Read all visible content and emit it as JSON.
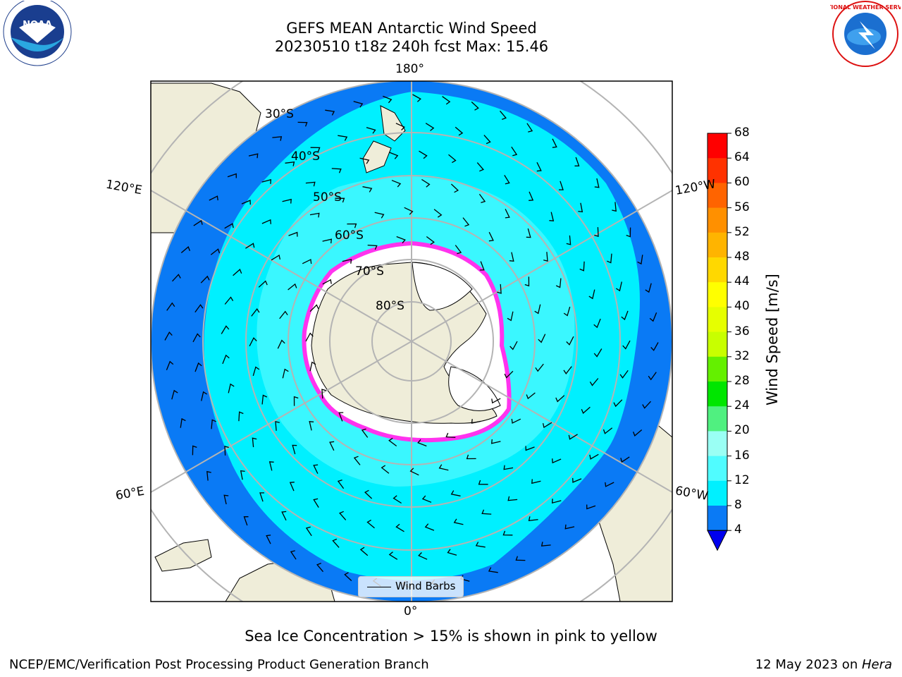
{
  "title": {
    "line1": "GEFS MEAN Antarctic Wind Speed",
    "line2": "20230510 t18z 240h fcst   Max: 15.46"
  },
  "logos": {
    "noaa_text": "NOAA",
    "nws_text": "NATIONAL WEATHER SERVICE"
  },
  "map": {
    "longitude_labels": {
      "top": "180°",
      "bottom": "0°",
      "upper_left": "120°E",
      "upper_right": "120°W",
      "lower_left": "60°E",
      "lower_right": "60°W"
    },
    "latitude_labels": [
      "30°S",
      "40°S",
      "50°S",
      "60°S",
      "70°S",
      "80°S"
    ],
    "legend_label": "Wind Barbs",
    "colors": {
      "land": "#efedd9",
      "ice": "#ffffff",
      "ice_edge": "#ff33ee",
      "wind_4_8": "#0a7af5",
      "wind_8_12": "#00f0ff",
      "wind_12_16": "#4dfaff"
    }
  },
  "colorbar": {
    "title": "Wind Speed [m/s]",
    "ticks": [
      "68",
      "64",
      "60",
      "56",
      "52",
      "48",
      "44",
      "40",
      "36",
      "32",
      "28",
      "24",
      "20",
      "16",
      "12",
      "8",
      "4"
    ],
    "colors": [
      "#ff0000",
      "#ff3200",
      "#ff6400",
      "#ff9000",
      "#ffb400",
      "#ffd800",
      "#ffff00",
      "#e6ff00",
      "#c8ff00",
      "#64f000",
      "#00e600",
      "#50f080",
      "#9afff4",
      "#50fcff",
      "#00f0ff",
      "#0a7af5"
    ],
    "extend_color": "#0000ee"
  },
  "note": "Sea Ice Concentration > 15% is shown in pink to yellow",
  "footer": {
    "left": "NCEP/EMC/Verification Post Processing Product Generation Branch",
    "right_prefix": "12 May 2023 on ",
    "right_machine": "Hera"
  }
}
